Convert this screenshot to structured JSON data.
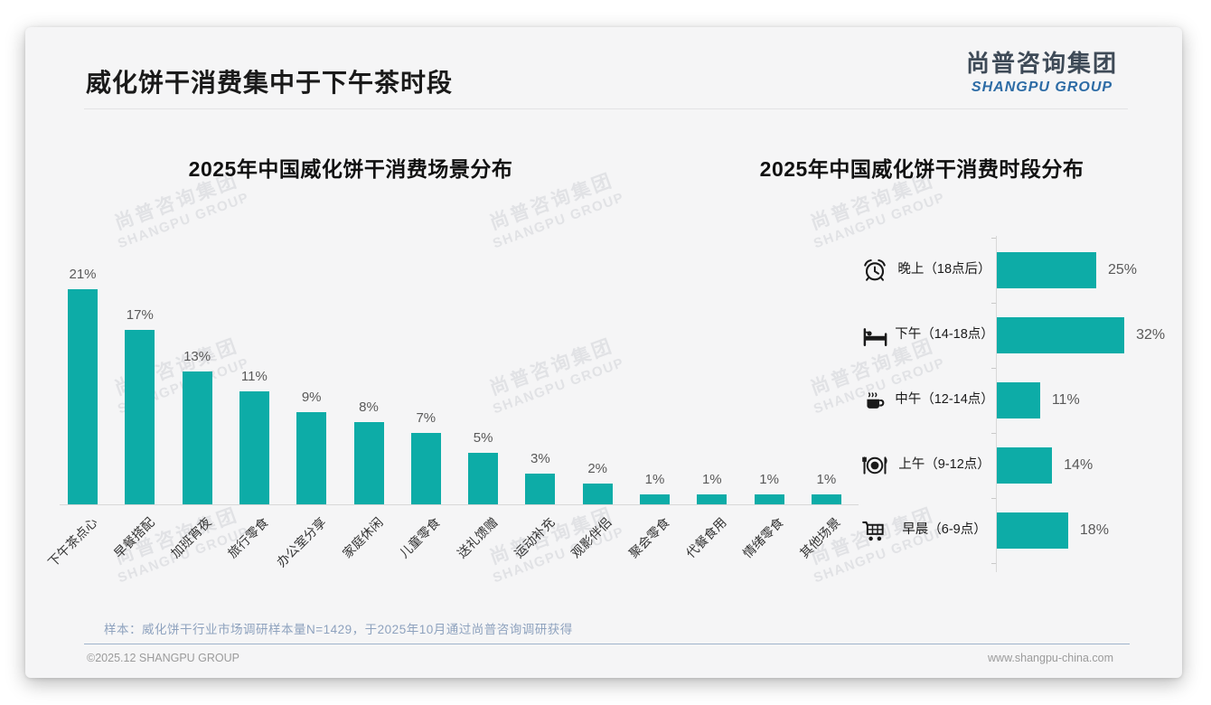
{
  "page": {
    "title": "威化饼干消费集中于下午茶时段",
    "logo": {
      "cn": "尚普咨询集团",
      "en": "SHANGPU GROUP"
    },
    "watermark": {
      "cn": "尚普咨询集团",
      "en": "SHANGPU GROUP"
    },
    "note": "样本：威化饼干行业市场调研样本量N=1429，于2025年10月通过尚普咨询调研获得",
    "footer_left": "©2025.12 SHANGPU GROUP",
    "footer_right": "www.shangpu-china.com"
  },
  "colors": {
    "accent": "#0DACA7",
    "slide_bg": "#F5F5F6",
    "logo_blue": "#2C6BA5",
    "note_blue": "#8EA2BE"
  },
  "chart_data": [
    {
      "type": "bar",
      "orientation": "vertical",
      "title": "2025年中国威化饼干消费场景分布",
      "categories": [
        "下午茶点心",
        "早餐搭配",
        "加班宵夜",
        "旅行零食",
        "办公室分享",
        "家庭休闲",
        "儿童零食",
        "送礼馈赠",
        "运动补充",
        "观影伴侣",
        "聚会零食",
        "代餐食用",
        "情绪零食",
        "其他场景"
      ],
      "values": [
        21,
        17,
        13,
        11,
        9,
        8,
        7,
        5,
        3,
        2,
        1,
        1,
        1,
        1
      ],
      "value_suffix": "%",
      "ylim": [
        0,
        23
      ],
      "grid": false,
      "legend": "none",
      "data_labels": true,
      "bar_color": "#0DACA7"
    },
    {
      "type": "bar",
      "orientation": "horizontal",
      "title": "2025年中国威化饼干消费时段分布",
      "categories": [
        "晚上（18点后）",
        "下午（14-18点）",
        "中午（12-14点）",
        "上午（9-12点）",
        "早晨（6-9点）"
      ],
      "icons": [
        "alarm-clock-icon",
        "bed-icon",
        "coffee-cup-icon",
        "dining-plate-icon",
        "shopping-cart-icon"
      ],
      "values": [
        25,
        32,
        11,
        14,
        18
      ],
      "value_suffix": "%",
      "xlim": [
        0,
        35
      ],
      "grid": false,
      "legend": "none",
      "data_labels": true,
      "bar_color": "#0DACA7"
    }
  ]
}
